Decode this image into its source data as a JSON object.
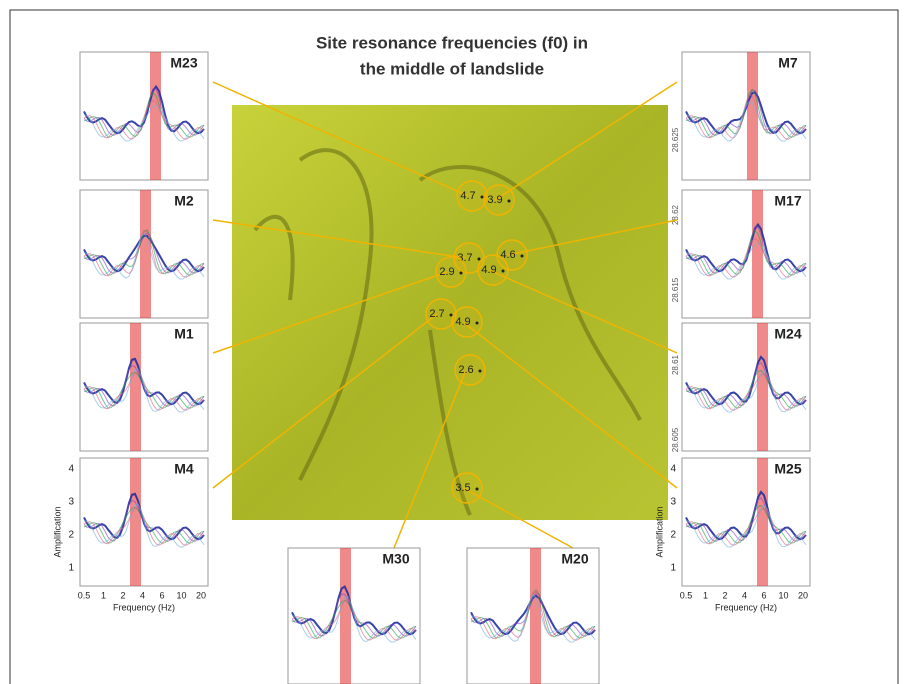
{
  "title_line1": "Site resonance frequencies (f0) in",
  "title_line2": "the middle of landslide",
  "map": {
    "lat_labels": [
      "28.625",
      "28.62",
      "28.615",
      "28.61",
      "28.605"
    ],
    "points": [
      {
        "label": "4.7"
      },
      {
        "label": "3.9"
      },
      {
        "label": "3.7"
      },
      {
        "label": "4.6"
      },
      {
        "label": "2.9"
      },
      {
        "label": "4.9"
      },
      {
        "label": "2.7"
      },
      {
        "label": "4.9"
      },
      {
        "label": "2.6"
      },
      {
        "label": "3.5"
      }
    ]
  },
  "panels": [
    {
      "name": "M23"
    },
    {
      "name": "M2"
    },
    {
      "name": "M1"
    },
    {
      "name": "M4"
    },
    {
      "name": "M7"
    },
    {
      "name": "M17"
    },
    {
      "name": "M24"
    },
    {
      "name": "M25"
    },
    {
      "name": "M30"
    },
    {
      "name": "M20"
    }
  ],
  "axes": {
    "y_label": "Amplification",
    "x_label": "Frequency (Hz)",
    "yticks": [
      "1",
      "2",
      "3",
      "4"
    ],
    "xticks": [
      "0.5",
      "1",
      "2",
      "4",
      "6",
      "10",
      "20"
    ]
  }
}
